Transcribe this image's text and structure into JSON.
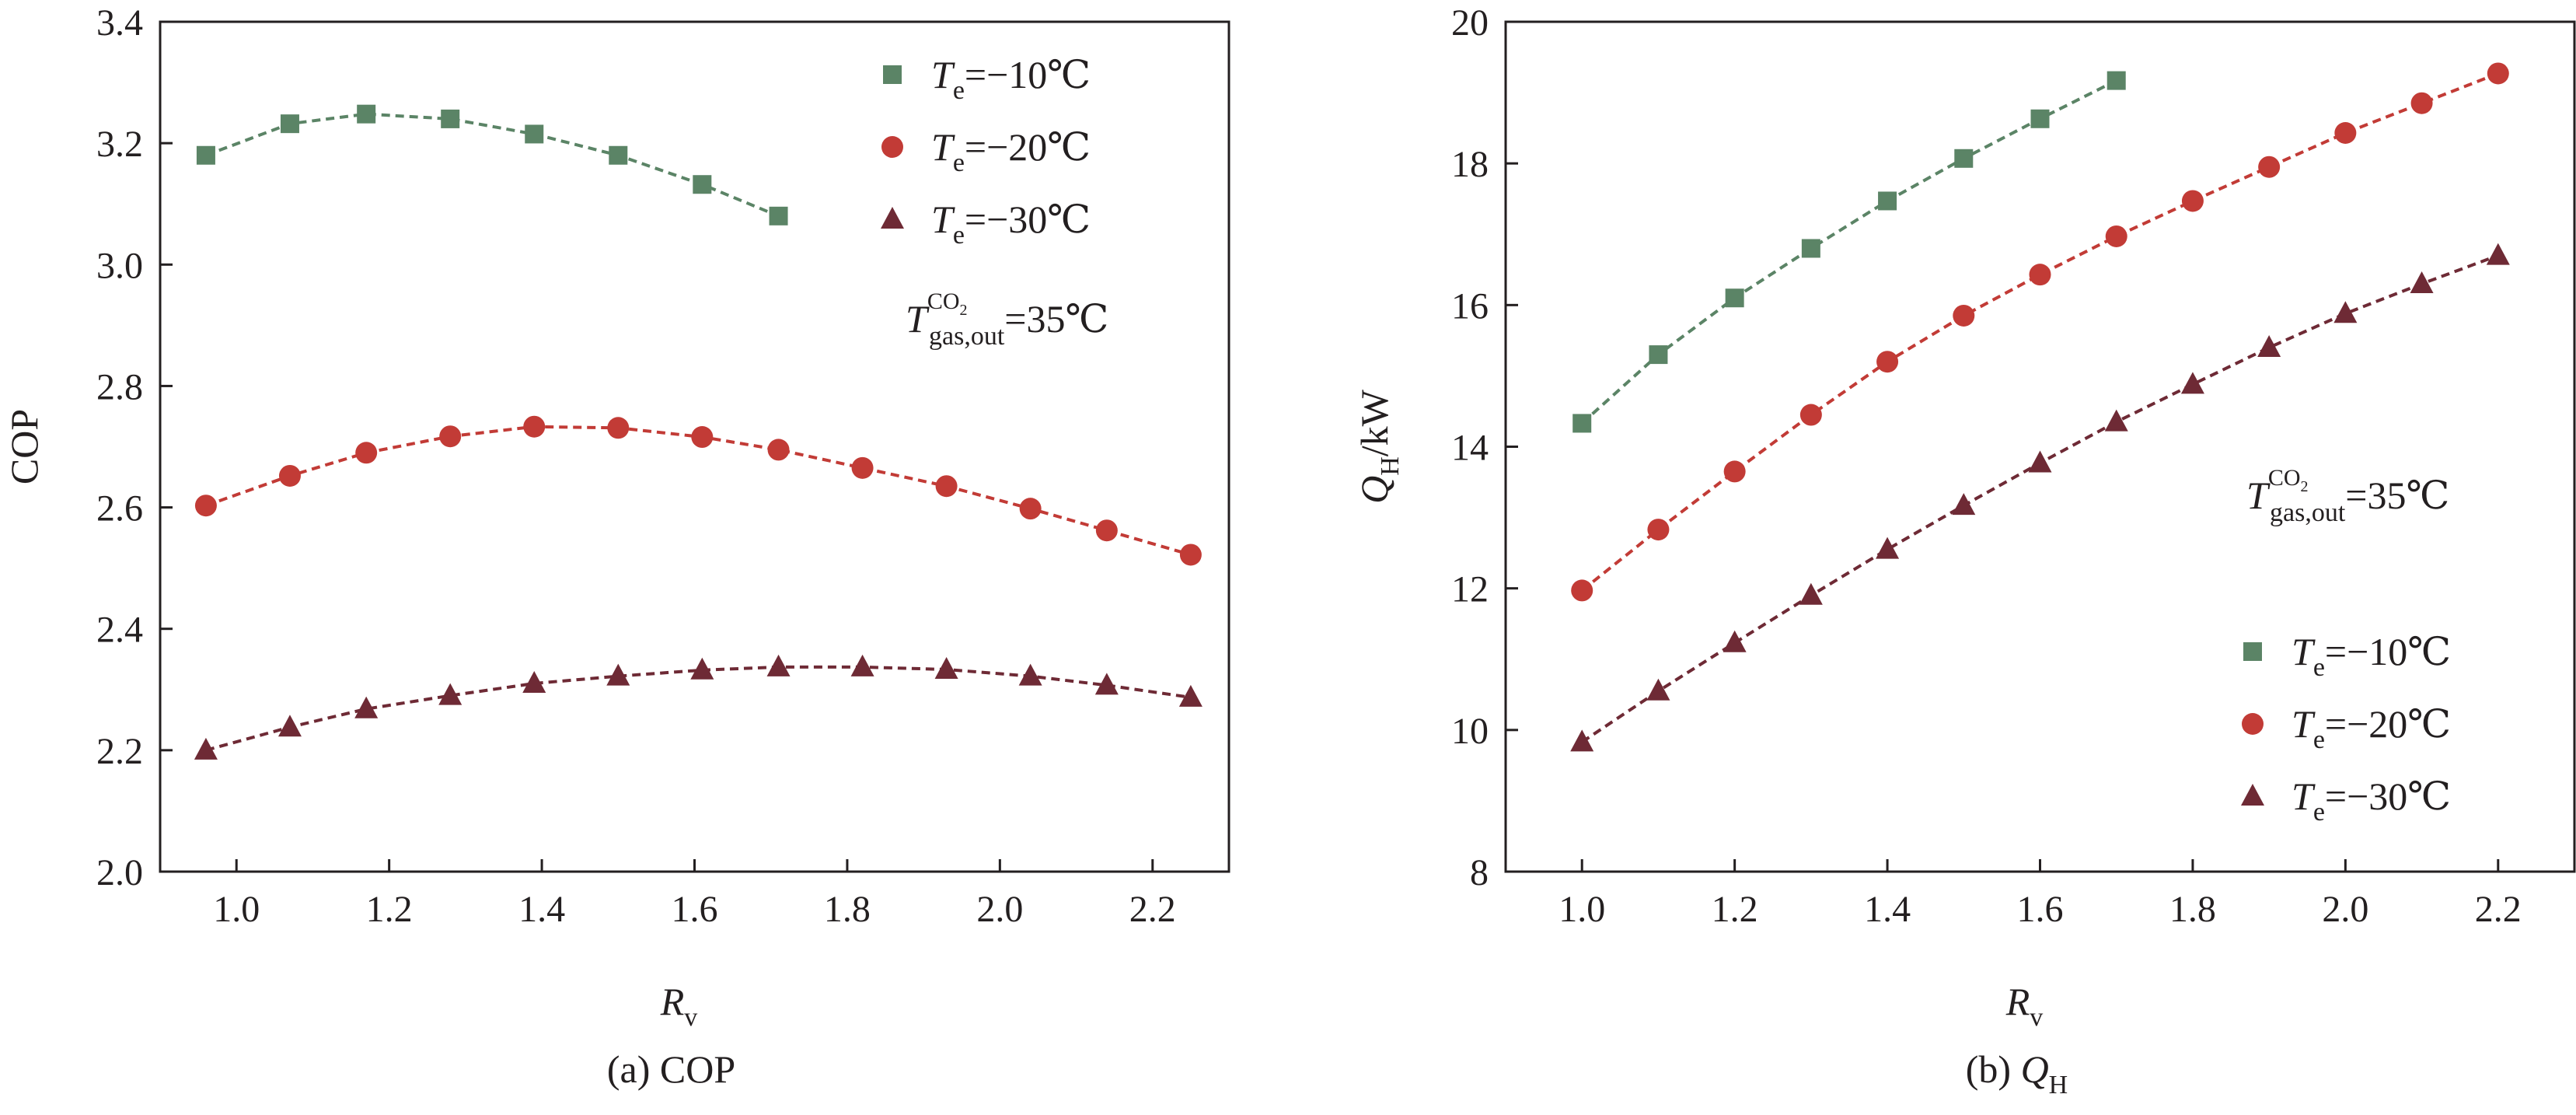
{
  "colors": {
    "green": "#5b8466",
    "red": "#c23b36",
    "maroon": "#6e2a35",
    "axis": "#231f20"
  },
  "chart_data": [
    {
      "type": "line",
      "caption_prefix": "(a) ",
      "caption_main": "COP",
      "caption_sub": "",
      "xlabel_main": "R",
      "xlabel_sub": "v",
      "ylabel_main": "COP",
      "ylabel_sub": "",
      "ylabel_suffix": "",
      "xlim": [
        0.9,
        2.3
      ],
      "ylim": [
        2.0,
        3.4
      ],
      "xticks": [
        "1.0",
        "1.2",
        "1.4",
        "1.6",
        "1.8",
        "2.0",
        "2.2"
      ],
      "yticks": [
        "2.0",
        "2.2",
        "2.4",
        "2.6",
        "2.8",
        "3.0",
        "3.2",
        "3.4"
      ],
      "grid": false,
      "legend_position": "top-right",
      "series": [
        {
          "name": "Te=−10℃",
          "symbol": "T",
          "sub": "e",
          "value": "=−10℃",
          "marker": "square",
          "color": "#5b8466",
          "x": [
            0.96,
            1.07,
            1.17,
            1.28,
            1.39,
            1.5,
            1.61,
            1.71
          ],
          "y": [
            3.18,
            3.232,
            3.248,
            3.24,
            3.215,
            3.18,
            3.132,
            3.08
          ]
        },
        {
          "name": "Te=−20℃",
          "symbol": "T",
          "sub": "e",
          "value": "=−20℃",
          "marker": "circle",
          "color": "#c23b36",
          "x": [
            0.96,
            1.07,
            1.17,
            1.28,
            1.39,
            1.5,
            1.61,
            1.71,
            1.82,
            1.93,
            2.04,
            2.14,
            2.25
          ],
          "y": [
            2.603,
            2.652,
            2.69,
            2.717,
            2.733,
            2.731,
            2.716,
            2.695,
            2.665,
            2.635,
            2.598,
            2.562,
            2.522
          ]
        },
        {
          "name": "Te=−30℃",
          "symbol": "T",
          "sub": "e",
          "value": "=−30℃",
          "marker": "triangle",
          "color": "#6e2a35",
          "x": [
            0.96,
            1.07,
            1.17,
            1.28,
            1.39,
            1.5,
            1.61,
            1.71,
            1.82,
            1.93,
            2.04,
            2.14,
            2.25
          ],
          "y": [
            2.2,
            2.238,
            2.268,
            2.29,
            2.31,
            2.322,
            2.332,
            2.337,
            2.337,
            2.333,
            2.322,
            2.307,
            2.287
          ]
        }
      ],
      "annotation": {
        "symbol": "T",
        "sup": "CO",
        "sup_sub": "2",
        "sub": "gas,out",
        "value": "=35℃"
      }
    },
    {
      "type": "line",
      "caption_prefix": "(b) ",
      "caption_main": "Q",
      "caption_sub": "H",
      "xlabel_main": "R",
      "xlabel_sub": "v",
      "ylabel_main": "Q",
      "ylabel_sub": "H",
      "ylabel_suffix": "/kW",
      "xlim": [
        0.9,
        2.3
      ],
      "ylim": [
        8,
        20
      ],
      "xticks": [
        "1.0",
        "1.2",
        "1.4",
        "1.6",
        "1.8",
        "2.0",
        "2.2"
      ],
      "yticks": [
        "8",
        "10",
        "12",
        "14",
        "16",
        "18",
        "20"
      ],
      "grid": false,
      "legend_position": "lower-right",
      "series": [
        {
          "name": "Te=−10℃",
          "symbol": "T",
          "sub": "e",
          "value": "=−10℃",
          "marker": "square",
          "color": "#5b8466",
          "x": [
            1.0,
            1.1,
            1.2,
            1.3,
            1.4,
            1.5,
            1.6,
            1.7
          ],
          "y": [
            14.33,
            15.3,
            16.1,
            16.8,
            17.47,
            18.07,
            18.63,
            19.17
          ]
        },
        {
          "name": "Te=−20℃",
          "symbol": "T",
          "sub": "e",
          "value": "=−20℃",
          "marker": "circle",
          "color": "#c23b36",
          "x": [
            1.0,
            1.1,
            1.2,
            1.3,
            1.4,
            1.5,
            1.6,
            1.7,
            1.8,
            1.9,
            2.0,
            2.1,
            2.2
          ],
          "y": [
            11.97,
            12.83,
            13.65,
            14.45,
            15.2,
            15.85,
            16.43,
            16.97,
            17.47,
            17.95,
            18.43,
            18.85,
            19.27
          ]
        },
        {
          "name": "Te=−30℃",
          "symbol": "T",
          "sub": "e",
          "value": "=−30℃",
          "marker": "triangle",
          "color": "#6e2a35",
          "x": [
            1.0,
            1.1,
            1.2,
            1.3,
            1.4,
            1.5,
            1.6,
            1.7,
            1.8,
            1.9,
            2.0,
            2.1,
            2.2
          ],
          "y": [
            9.83,
            10.55,
            11.23,
            11.9,
            12.55,
            13.17,
            13.77,
            14.35,
            14.88,
            15.4,
            15.88,
            16.3,
            16.7
          ]
        }
      ],
      "annotation": {
        "symbol": "T",
        "sup": "CO",
        "sup_sub": "2",
        "sub": "gas,out",
        "value": "=35℃"
      }
    }
  ]
}
